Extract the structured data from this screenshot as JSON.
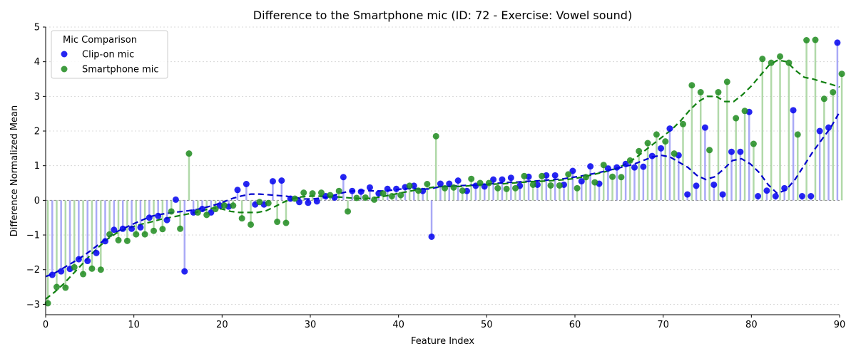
{
  "chart_data": {
    "type": "scatter",
    "title": "Difference to the Smartphone mic (ID: 72 - Exercise: Vowel sound)",
    "xlabel": "Feature Index",
    "ylabel": "Difference Normalized Mean",
    "xlim": [
      0,
      90
    ],
    "ylim": [
      -3.3,
      5
    ],
    "xticks": [
      0,
      10,
      20,
      30,
      40,
      50,
      60,
      70,
      80,
      90
    ],
    "yticks": [
      -3,
      -2,
      -1,
      0,
      1,
      2,
      3,
      4,
      5
    ],
    "grid": "horizontal dotted",
    "legend": {
      "title": "Mic Comparison",
      "placement": "top-left"
    },
    "series": [
      {
        "name": "Clip-on mic",
        "color": "#0000ee",
        "stem_color": "#a0a0f5",
        "trend_color": "#0000cc",
        "x": [
          0.75,
          1.75,
          2.75,
          3.75,
          4.75,
          5.75,
          6.75,
          7.75,
          8.75,
          9.75,
          10.75,
          11.75,
          12.75,
          13.75,
          14.75,
          15.75,
          16.75,
          17.75,
          18.75,
          19.75,
          20.75,
          21.75,
          22.75,
          23.75,
          24.75,
          25.75,
          26.75,
          27.75,
          28.75,
          29.75,
          30.75,
          31.75,
          32.75,
          33.75,
          34.75,
          35.75,
          36.75,
          37.75,
          38.75,
          39.75,
          40.75,
          41.75,
          42.75,
          43.75,
          44.75,
          45.75,
          46.75,
          47.75,
          48.75,
          49.75,
          50.75,
          51.75,
          52.75,
          53.75,
          54.75,
          55.75,
          56.75,
          57.75,
          58.75,
          59.75,
          60.75,
          61.75,
          62.75,
          63.75,
          64.75,
          65.75,
          66.75,
          67.75,
          68.75,
          69.75,
          70.75,
          71.75,
          72.75,
          73.75,
          74.75,
          75.75,
          76.75,
          77.75,
          78.75,
          79.75,
          80.75,
          81.75,
          82.75,
          83.75,
          84.75,
          85.75,
          86.75,
          87.75,
          88.75,
          89.75
        ],
        "values": [
          -2.15,
          -2.05,
          -1.98,
          -1.7,
          -1.75,
          -1.52,
          -1.18,
          -0.85,
          -0.82,
          -0.82,
          -0.78,
          -0.5,
          -0.45,
          -0.57,
          0.02,
          -2.05,
          -0.35,
          -0.25,
          -0.35,
          -0.15,
          -0.18,
          0.3,
          0.47,
          -0.12,
          -0.12,
          0.55,
          0.57,
          0.05,
          -0.05,
          -0.07,
          -0.03,
          0.12,
          0.08,
          0.67,
          0.27,
          0.25,
          0.37,
          0.2,
          0.33,
          0.33,
          0.38,
          0.42,
          0.27,
          -1.05,
          0.48,
          0.48,
          0.57,
          0.27,
          0.42,
          0.4,
          0.6,
          0.6,
          0.65,
          0.42,
          0.68,
          0.45,
          0.72,
          0.72,
          0.45,
          0.85,
          0.55,
          0.98,
          0.48,
          0.92,
          0.95,
          1.05,
          0.95,
          0.97,
          1.28,
          1.5,
          2.07,
          1.3,
          0.17,
          0.42,
          2.1,
          0.45,
          0.17,
          1.4,
          1.4,
          2.55,
          0.12,
          0.28,
          0.12,
          0.35,
          2.6,
          0.12,
          0.12,
          2.0,
          2.1,
          4.55
        ],
        "trend": [
          -2.2,
          -2.1,
          -1.95,
          -1.8,
          -1.64,
          -1.46,
          -1.26,
          -1.06,
          -0.9,
          -0.78,
          -0.66,
          -0.55,
          -0.45,
          -0.4,
          -0.36,
          -0.33,
          -0.3,
          -0.26,
          -0.2,
          -0.13,
          -0.04,
          0.06,
          0.13,
          0.18,
          0.18,
          0.16,
          0.14,
          0.12,
          0.08,
          0.04,
          0.04,
          0.07,
          0.12,
          0.2,
          0.26,
          0.28,
          0.28,
          0.27,
          0.27,
          0.3,
          0.33,
          0.34,
          0.32,
          0.33,
          0.38,
          0.4,
          0.42,
          0.43,
          0.44,
          0.46,
          0.48,
          0.5,
          0.52,
          0.53,
          0.55,
          0.56,
          0.58,
          0.6,
          0.62,
          0.66,
          0.7,
          0.75,
          0.8,
          0.86,
          0.92,
          0.98,
          1.05,
          1.15,
          1.25,
          1.3,
          1.25,
          1.1,
          0.95,
          0.72,
          0.6,
          0.68,
          0.9,
          1.15,
          1.2,
          1.05,
          0.8,
          0.45,
          0.2,
          0.3,
          0.6,
          1.0,
          1.4,
          1.75,
          2.1,
          2.55
        ]
      },
      {
        "name": "Smartphone mic",
        "color": "#1f8b1f",
        "stem_color": "#a8d5a0",
        "trend_color": "#108010",
        "x": [
          0.25,
          1.25,
          2.25,
          3.25,
          4.25,
          5.25,
          6.25,
          7.25,
          8.25,
          9.25,
          10.25,
          11.25,
          12.25,
          13.25,
          14.25,
          15.25,
          16.25,
          17.25,
          18.25,
          19.25,
          20.25,
          21.25,
          22.25,
          23.25,
          24.25,
          25.25,
          26.25,
          27.25,
          28.25,
          29.25,
          30.25,
          31.25,
          32.25,
          33.25,
          34.25,
          35.25,
          36.25,
          37.25,
          38.25,
          39.25,
          40.25,
          41.25,
          42.25,
          43.25,
          44.25,
          45.25,
          46.25,
          47.25,
          48.25,
          49.25,
          50.25,
          51.25,
          52.25,
          53.25,
          54.25,
          55.25,
          56.25,
          57.25,
          58.25,
          59.25,
          60.25,
          61.25,
          62.25,
          63.25,
          64.25,
          65.25,
          66.25,
          67.25,
          68.25,
          69.25,
          70.25,
          71.25,
          72.25,
          73.25,
          74.25,
          75.25,
          76.25,
          77.25,
          78.25,
          79.25,
          80.25,
          81.25,
          82.25,
          83.25,
          84.25,
          85.25,
          86.25,
          87.25,
          88.25,
          89.25,
          90.25
        ],
        "values": [
          -2.97,
          -2.5,
          -2.52,
          -1.93,
          -2.13,
          -1.97,
          -2.0,
          -0.98,
          -1.15,
          -1.17,
          -0.98,
          -0.98,
          -0.88,
          -0.83,
          -0.32,
          -0.82,
          1.35,
          -0.35,
          -0.42,
          -0.25,
          -0.15,
          -0.15,
          -0.52,
          -0.7,
          -0.05,
          -0.08,
          -0.62,
          -0.65,
          0.05,
          0.22,
          0.2,
          0.22,
          0.15,
          0.27,
          -0.32,
          0.07,
          0.08,
          0.02,
          0.2,
          0.12,
          0.15,
          0.42,
          0.28,
          0.47,
          1.85,
          0.35,
          0.37,
          0.28,
          0.62,
          0.5,
          0.5,
          0.35,
          0.33,
          0.35,
          0.7,
          0.45,
          0.7,
          0.43,
          0.43,
          0.75,
          0.35,
          0.67,
          0.52,
          1.02,
          0.68,
          0.67,
          1.15,
          1.42,
          1.65,
          1.9,
          1.7,
          1.35,
          2.2,
          3.32,
          3.12,
          1.45,
          3.12,
          3.42,
          2.37,
          2.58,
          1.63,
          4.08,
          3.97,
          4.15,
          3.97,
          1.9,
          4.62,
          4.63,
          2.93,
          3.12,
          3.65
        ],
        "trend": [
          -2.85,
          -2.65,
          -2.42,
          -2.15,
          -1.88,
          -1.6,
          -1.35,
          -1.12,
          -0.95,
          -0.83,
          -0.75,
          -0.68,
          -0.62,
          -0.55,
          -0.5,
          -0.45,
          -0.4,
          -0.35,
          -0.28,
          -0.22,
          -0.25,
          -0.32,
          -0.35,
          -0.35,
          -0.35,
          -0.3,
          -0.18,
          -0.05,
          0.05,
          0.1,
          0.12,
          0.12,
          0.11,
          0.1,
          0.08,
          0.06,
          0.05,
          0.06,
          0.1,
          0.15,
          0.2,
          0.25,
          0.3,
          0.34,
          0.38,
          0.4,
          0.4,
          0.4,
          0.42,
          0.44,
          0.46,
          0.47,
          0.48,
          0.5,
          0.52,
          0.54,
          0.55,
          0.56,
          0.58,
          0.6,
          0.63,
          0.68,
          0.74,
          0.8,
          0.86,
          0.95,
          1.08,
          1.25,
          1.45,
          1.65,
          1.85,
          2.05,
          2.3,
          2.6,
          2.85,
          3.0,
          3.0,
          2.85,
          2.85,
          3.05,
          3.3,
          3.6,
          3.9,
          4.05,
          4.0,
          3.75,
          3.55,
          3.5,
          3.42,
          3.35,
          3.27
        ]
      }
    ]
  }
}
